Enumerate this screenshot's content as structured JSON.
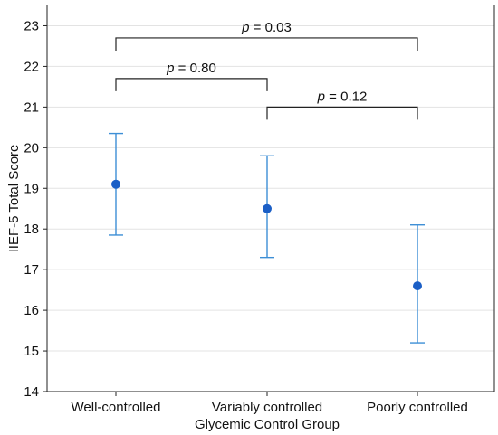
{
  "chart_data": {
    "type": "scatter",
    "xlabel": "Glycemic Control Group",
    "ylabel": "IIEF-5 Total Score",
    "ylim": [
      14,
      23.5
    ],
    "yticks": [
      14,
      15,
      16,
      17,
      18,
      19,
      20,
      21,
      22,
      23
    ],
    "grid": "horizontal",
    "categories": [
      "Well-controlled",
      "Variably controlled",
      "Poorly controlled"
    ],
    "points": [
      {
        "category": "Well-controlled",
        "mean": 19.1,
        "lower": 17.85,
        "upper": 20.35
      },
      {
        "category": "Variably controlled",
        "mean": 18.5,
        "lower": 17.3,
        "upper": 19.8
      },
      {
        "category": "Poorly controlled",
        "mean": 16.6,
        "lower": 15.2,
        "upper": 18.1
      }
    ],
    "annotations": [
      {
        "from": 0,
        "to": 2,
        "y": 22.7,
        "p_label": "p",
        "value_text": " = 0.03"
      },
      {
        "from": 0,
        "to": 1,
        "y": 21.7,
        "p_label": "p",
        "value_text": " = 0.80"
      },
      {
        "from": 1,
        "to": 2,
        "y": 21.0,
        "p_label": "p",
        "value_text": " = 0.12"
      }
    ],
    "colors": {
      "point": "#1b5fc6",
      "errorbar": "#3d8fd6",
      "grid": "#e3e3e3",
      "axis": "#222222",
      "bracket": "#222222"
    }
  }
}
